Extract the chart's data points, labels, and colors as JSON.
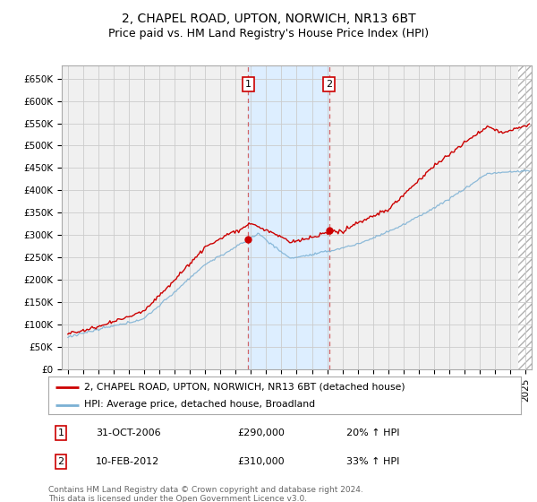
{
  "title": "2, CHAPEL ROAD, UPTON, NORWICH, NR13 6BT",
  "subtitle": "Price paid vs. HM Land Registry's House Price Index (HPI)",
  "ylim": [
    0,
    680000
  ],
  "yticks": [
    0,
    50000,
    100000,
    150000,
    200000,
    250000,
    300000,
    350000,
    400000,
    450000,
    500000,
    550000,
    600000,
    650000
  ],
  "xlim_start": 1994.6,
  "xlim_end": 2025.4,
  "sale1_x": 2006.83,
  "sale1_y": 290000,
  "sale1_label": "1",
  "sale1_date": "31-OCT-2006",
  "sale1_price": "£290,000",
  "sale1_hpi": "20% ↑ HPI",
  "sale2_x": 2012.12,
  "sale2_y": 310000,
  "sale2_label": "2",
  "sale2_date": "10-FEB-2012",
  "sale2_price": "£310,000",
  "sale2_hpi": "33% ↑ HPI",
  "line_color_red": "#cc0000",
  "line_color_blue": "#7ab0d4",
  "shade_color": "#ddeeff",
  "grid_color": "#cccccc",
  "bg_color": "#f0f0f0",
  "legend_label_red": "2, CHAPEL ROAD, UPTON, NORWICH, NR13 6BT (detached house)",
  "legend_label_blue": "HPI: Average price, detached house, Broadland",
  "footer": "Contains HM Land Registry data © Crown copyright and database right 2024.\nThis data is licensed under the Open Government Licence v3.0.",
  "title_fontsize": 10,
  "subtitle_fontsize": 9,
  "tick_fontsize": 7.5,
  "hatch_start": 2024.5
}
